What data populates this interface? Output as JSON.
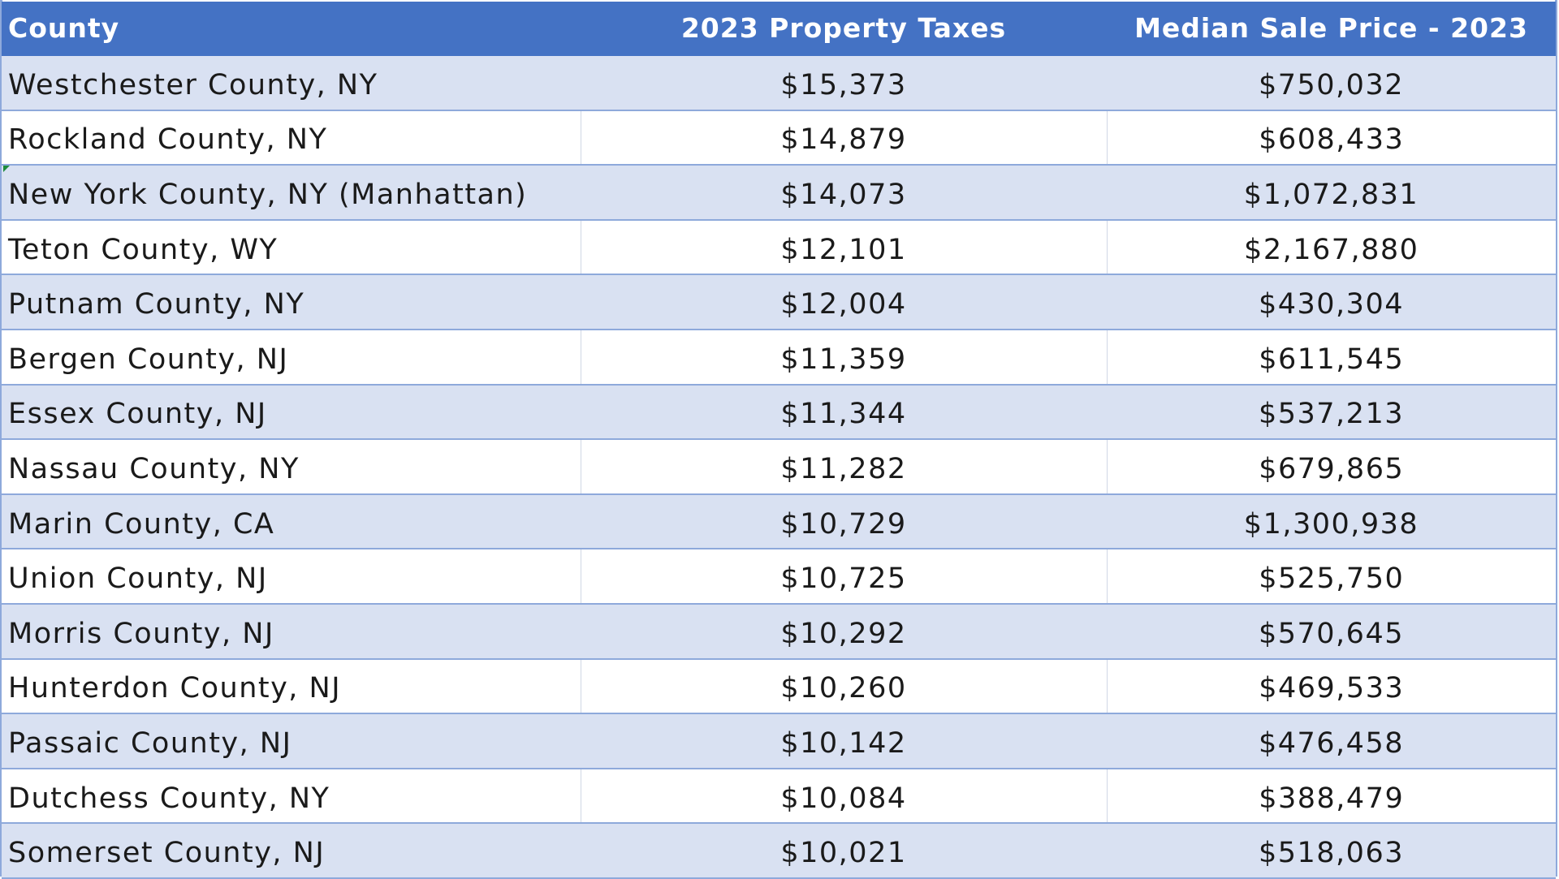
{
  "table": {
    "headers": {
      "county": "County",
      "taxes": "2023 Property Taxes",
      "price": "Median Sale Price - 2023"
    },
    "rows": [
      {
        "county": "Westchester County, NY",
        "taxes": "$15,373",
        "price": "$750,032"
      },
      {
        "county": "Rockland County, NY",
        "taxes": "$14,879",
        "price": "$608,433"
      },
      {
        "county": "New York County, NY (Manhattan)",
        "taxes": "$14,073",
        "price": "$1,072,831"
      },
      {
        "county": "Teton County, WY",
        "taxes": "$12,101",
        "price": "$2,167,880"
      },
      {
        "county": "Putnam County, NY",
        "taxes": "$12,004",
        "price": "$430,304"
      },
      {
        "county": "Bergen County, NJ",
        "taxes": "$11,359",
        "price": "$611,545"
      },
      {
        "county": "Essex County, NJ",
        "taxes": "$11,344",
        "price": "$537,213"
      },
      {
        "county": "Nassau County, NY",
        "taxes": "$11,282",
        "price": "$679,865"
      },
      {
        "county": "Marin County, CA",
        "taxes": "$10,729",
        "price": "$1,300,938"
      },
      {
        "county": "Union County, NJ",
        "taxes": "$10,725",
        "price": "$525,750"
      },
      {
        "county": "Morris County, NJ",
        "taxes": "$10,292",
        "price": "$570,645"
      },
      {
        "county": "Hunterdon County, NJ",
        "taxes": "$10,260",
        "price": "$469,533"
      },
      {
        "county": "Passaic County, NJ",
        "taxes": "$10,142",
        "price": "$476,458"
      },
      {
        "county": "Dutchess County, NY",
        "taxes": "$10,084",
        "price": "$388,479"
      },
      {
        "county": "Somerset County, NJ",
        "taxes": "$10,021",
        "price": "$518,063"
      }
    ]
  },
  "colors": {
    "header_background": "#4472c4",
    "header_text": "#ffffff",
    "band_row": "#d9e1f2",
    "plain_row": "#ffffff",
    "row_border": "#8ea9db"
  }
}
